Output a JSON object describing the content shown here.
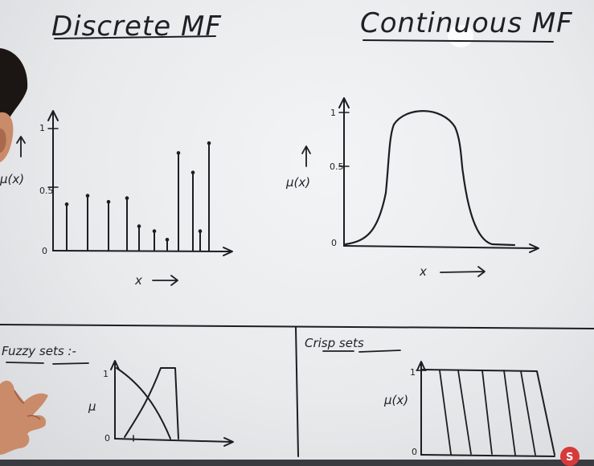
{
  "top_left": {
    "title": "Discrete MF",
    "y_label": "μ(x)",
    "y_ticks": [
      "1",
      "0.5",
      "0"
    ],
    "x_label": "x",
    "stems": [
      0.38,
      0.45,
      0.4,
      0.43,
      0.2,
      0.16,
      0.09,
      0.8,
      0.64,
      0.16,
      0.88
    ]
  },
  "top_right": {
    "title": "Continuous MF",
    "y_label": "μ(x)",
    "y_ticks": [
      "1",
      "0.5",
      "0"
    ],
    "x_label": "x"
  },
  "bottom_left": {
    "title": "Fuzzy sets :-",
    "y_label": "μ",
    "y_ticks": [
      "1",
      "0"
    ]
  },
  "bottom_right": {
    "title": "Crisp sets",
    "y_label": "μ(x)",
    "y_ticks": [
      "1",
      "0"
    ]
  },
  "colors": {
    "ink": "#1d1d22",
    "board": "#eceeef",
    "skin": "#c98b6a",
    "hair": "#1b1513",
    "logo": "#d63a3a"
  },
  "logo": {
    "text": "S"
  }
}
